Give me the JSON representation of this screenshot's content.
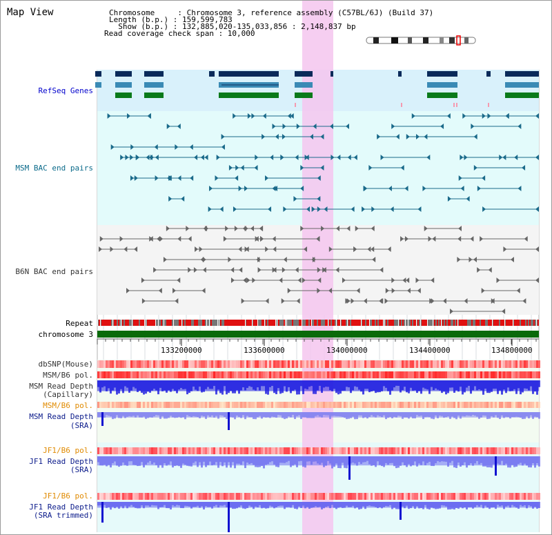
{
  "view_title": "Map View",
  "info": {
    "line1": "Chromosome     : Chromosome 3, reference assembly (C57BL/6J) (Build 37)",
    "line2": "Length (b.p.) : 159,599,783",
    "line3": "  Show (b.p.) : 132,885,020-135,033,856 : 2,148,837 bp",
    "line4": "Read coverage check span : 10,000"
  },
  "tracks": {
    "refseq": "RefSeq Genes",
    "msm_bac": "MSM BAC end pairs",
    "b6n_bac": "B6N BAC end pairs",
    "repeat": "Repeat",
    "chromosome": "chromosome 3",
    "dbsnp": "dbSNP(Mouse)",
    "msm_b6_pol_1": "MSM/B6 pol.",
    "msm_depth_cap_1": "MSM Read Depth",
    "msm_depth_cap_2": "(Capillary)",
    "msm_b6_pol_2": "MSM/B6 pol.",
    "msm_depth_sra_1": "MSM Read Depth",
    "msm_depth_sra_2": "(SRA)",
    "jf1_b6_pol_1": "JF1/B6 pol.",
    "jf1_depth_sra_1": "JF1 Read Depth",
    "jf1_depth_sra_2": "(SRA)",
    "jf1_b6_pol_2": "JF1/B6 pol.",
    "jf1_depth_trim_1": "JF1 Read Depth",
    "jf1_depth_trim_2": "(SRA trimmed)"
  },
  "axis": {
    "ticks": [
      "133200000",
      "133600000",
      "134000000",
      "134400000",
      "134800000"
    ]
  },
  "colors": {
    "highlight": "#f5c6ef",
    "refseq_bg": "#d9f1fb",
    "bac_bg": "#e3fbfb",
    "gene_dark": "#0a2a5a",
    "gene_mid": "#3a8ab5",
    "gene_green": "#0a7a1a",
    "chrom_bar": "#0a6a0a",
    "depth_blue": "#1a1ae0"
  }
}
